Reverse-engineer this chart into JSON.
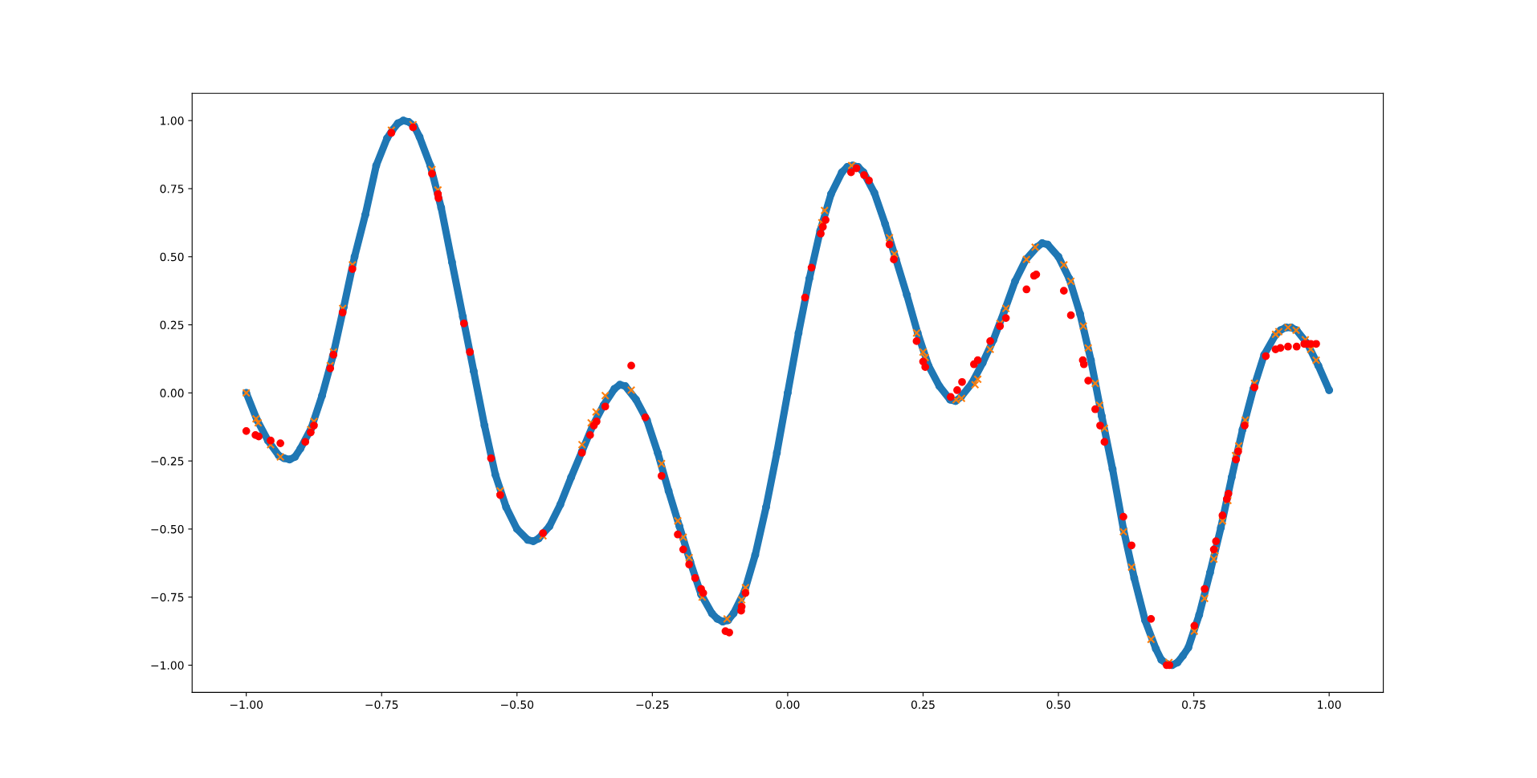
{
  "chart_data": {
    "type": "scatter",
    "xlim": [
      -1.1,
      1.1
    ],
    "ylim": [
      -1.1,
      1.1
    ],
    "xticks": [
      {
        "value": -1.0,
        "label": "−1.00"
      },
      {
        "value": -0.75,
        "label": "−0.75"
      },
      {
        "value": -0.5,
        "label": "−0.50"
      },
      {
        "value": -0.25,
        "label": "−0.25"
      },
      {
        "value": 0.0,
        "label": "0.00"
      },
      {
        "value": 0.25,
        "label": "0.25"
      },
      {
        "value": 0.5,
        "label": "0.50"
      },
      {
        "value": 0.75,
        "label": "0.75"
      },
      {
        "value": 1.0,
        "label": "1.00"
      }
    ],
    "yticks": [
      {
        "value": -1.0,
        "label": "−1.00"
      },
      {
        "value": -0.75,
        "label": "−0.75"
      },
      {
        "value": -0.5,
        "label": "−0.50"
      },
      {
        "value": -0.25,
        "label": "−0.25"
      },
      {
        "value": 0.0,
        "label": "0.00"
      },
      {
        "value": 0.25,
        "label": "0.25"
      },
      {
        "value": 0.5,
        "label": "0.50"
      },
      {
        "value": 0.75,
        "label": "0.75"
      },
      {
        "value": 1.0,
        "label": "1.00"
      }
    ],
    "series": [
      {
        "type": "line",
        "marker": "circle",
        "line_style": "solid",
        "color": "#1f77b4",
        "x": [
          -1.0,
          -0.98,
          -0.96,
          -0.94,
          -0.93,
          -0.92,
          -0.91,
          -0.9,
          -0.88,
          -0.86,
          -0.84,
          -0.82,
          -0.8,
          -0.78,
          -0.76,
          -0.74,
          -0.73,
          -0.72,
          -0.71,
          -0.7,
          -0.69,
          -0.68,
          -0.66,
          -0.64,
          -0.62,
          -0.6,
          -0.58,
          -0.56,
          -0.54,
          -0.52,
          -0.5,
          -0.48,
          -0.47,
          -0.46,
          -0.44,
          -0.42,
          -0.4,
          -0.38,
          -0.36,
          -0.34,
          -0.32,
          -0.31,
          -0.3,
          -0.28,
          -0.26,
          -0.24,
          -0.22,
          -0.2,
          -0.18,
          -0.16,
          -0.14,
          -0.13,
          -0.12,
          -0.11,
          -0.1,
          -0.08,
          -0.06,
          -0.04,
          -0.02,
          0.0,
          0.02,
          0.04,
          0.06,
          0.08,
          0.1,
          0.11,
          0.12,
          0.13,
          0.14,
          0.16,
          0.18,
          0.2,
          0.22,
          0.24,
          0.26,
          0.28,
          0.3,
          0.31,
          0.32,
          0.34,
          0.36,
          0.38,
          0.4,
          0.42,
          0.44,
          0.46,
          0.47,
          0.48,
          0.5,
          0.52,
          0.54,
          0.56,
          0.58,
          0.6,
          0.62,
          0.64,
          0.66,
          0.68,
          0.69,
          0.7,
          0.71,
          0.72,
          0.73,
          0.74,
          0.76,
          0.78,
          0.8,
          0.82,
          0.84,
          0.86,
          0.88,
          0.9,
          0.91,
          0.92,
          0.93,
          0.94,
          0.96,
          0.98,
          1.0
        ],
        "values": [
          0.0,
          -0.1,
          -0.175,
          -0.23,
          -0.24,
          -0.245,
          -0.235,
          -0.205,
          -0.13,
          -0.01,
          0.135,
          0.315,
          0.5,
          0.655,
          0.835,
          0.935,
          0.965,
          0.99,
          1.0,
          0.995,
          0.98,
          0.94,
          0.835,
          0.68,
          0.48,
          0.28,
          0.08,
          -0.12,
          -0.3,
          -0.42,
          -0.5,
          -0.54,
          -0.545,
          -0.535,
          -0.49,
          -0.41,
          -0.31,
          -0.215,
          -0.12,
          -0.045,
          0.015,
          0.03,
          0.025,
          -0.025,
          -0.1,
          -0.22,
          -0.36,
          -0.49,
          -0.62,
          -0.74,
          -0.81,
          -0.83,
          -0.84,
          -0.835,
          -0.81,
          -0.73,
          -0.595,
          -0.42,
          -0.22,
          0.0,
          0.22,
          0.42,
          0.595,
          0.73,
          0.81,
          0.83,
          0.835,
          0.83,
          0.81,
          0.735,
          0.62,
          0.49,
          0.36,
          0.22,
          0.1,
          0.025,
          -0.025,
          -0.03,
          -0.015,
          0.035,
          0.11,
          0.195,
          0.3,
          0.41,
          0.49,
          0.535,
          0.55,
          0.545,
          0.5,
          0.42,
          0.29,
          0.12,
          -0.085,
          -0.28,
          -0.5,
          -0.68,
          -0.835,
          -0.94,
          -0.98,
          -0.995,
          -1.0,
          -0.99,
          -0.965,
          -0.935,
          -0.815,
          -0.66,
          -0.495,
          -0.31,
          -0.135,
          0.015,
          0.14,
          0.21,
          0.23,
          0.24,
          0.24,
          0.23,
          0.18,
          0.1,
          0.01
        ]
      },
      {
        "marker": "cross",
        "color": "#ff7f0e",
        "x": [
          -1.0,
          -0.982,
          -0.978,
          -0.955,
          -0.937,
          -0.881,
          -0.875,
          -0.845,
          -0.839,
          -0.822,
          -0.804,
          -0.732,
          -0.692,
          -0.657,
          -0.646,
          -0.531,
          -0.452,
          -0.38,
          -0.363,
          -0.354,
          -0.337,
          -0.289,
          -0.233,
          -0.203,
          -0.193,
          -0.182,
          -0.158,
          -0.112,
          -0.085,
          -0.078,
          0.063,
          0.068,
          0.118,
          0.188,
          0.197,
          0.238,
          0.25,
          0.254,
          0.311,
          0.321,
          0.346,
          0.351,
          0.374,
          0.392,
          0.403,
          0.441,
          0.457,
          0.51,
          0.523,
          0.546,
          0.555,
          0.568,
          0.576,
          0.585,
          0.62,
          0.635,
          0.671,
          0.704,
          0.751,
          0.77,
          0.787,
          0.789,
          0.803,
          0.813,
          0.827,
          0.833,
          0.845,
          0.862,
          0.901,
          0.907,
          0.924,
          0.939,
          0.956,
          0.966,
          0.976
        ],
        "values": [
          0.0,
          -0.095,
          -0.11,
          -0.19,
          -0.235,
          -0.135,
          -0.105,
          0.1,
          0.15,
          0.31,
          0.47,
          0.965,
          0.985,
          0.82,
          0.745,
          -0.36,
          -0.525,
          -0.19,
          -0.11,
          -0.07,
          -0.01,
          0.01,
          -0.26,
          -0.47,
          -0.53,
          -0.605,
          -0.75,
          -0.83,
          -0.76,
          -0.715,
          0.625,
          0.67,
          0.835,
          0.57,
          0.51,
          0.22,
          0.15,
          0.13,
          -0.025,
          -0.02,
          0.03,
          0.05,
          0.16,
          0.255,
          0.31,
          0.49,
          0.535,
          0.47,
          0.41,
          0.245,
          0.165,
          0.035,
          -0.045,
          -0.13,
          -0.51,
          -0.64,
          -0.905,
          -0.99,
          -0.875,
          -0.755,
          -0.61,
          -0.58,
          -0.47,
          -0.395,
          -0.23,
          -0.195,
          -0.1,
          0.035,
          0.215,
          0.225,
          0.24,
          0.23,
          0.195,
          0.16,
          0.12
        ]
      },
      {
        "marker": "circle",
        "color": "#ff0000",
        "x": [
          -1.0,
          -0.983,
          -0.977,
          -0.955,
          -0.937,
          -0.891,
          -0.881,
          -0.875,
          -0.845,
          -0.839,
          -0.822,
          -0.804,
          -0.732,
          -0.692,
          -0.657,
          -0.646,
          -0.645,
          -0.598,
          -0.587,
          -0.548,
          -0.531,
          -0.452,
          -0.38,
          -0.365,
          -0.358,
          -0.353,
          -0.337,
          -0.289,
          -0.263,
          -0.233,
          -0.203,
          -0.193,
          -0.182,
          -0.171,
          -0.16,
          -0.156,
          -0.115,
          -0.108,
          -0.086,
          -0.085,
          -0.078,
          0.032,
          0.044,
          0.061,
          0.065,
          0.07,
          0.117,
          0.127,
          0.141,
          0.15,
          0.188,
          0.196,
          0.238,
          0.25,
          0.254,
          0.301,
          0.313,
          0.322,
          0.344,
          0.351,
          0.374,
          0.392,
          0.403,
          0.441,
          0.455,
          0.459,
          0.51,
          0.523,
          0.545,
          0.547,
          0.555,
          0.568,
          0.577,
          0.585,
          0.62,
          0.635,
          0.671,
          0.7,
          0.705,
          0.751,
          0.77,
          0.787,
          0.791,
          0.803,
          0.811,
          0.814,
          0.828,
          0.832,
          0.844,
          0.862,
          0.883,
          0.901,
          0.91,
          0.924,
          0.94,
          0.954,
          0.96,
          0.966,
          0.976
        ],
        "values": [
          -0.14,
          -0.155,
          -0.16,
          -0.175,
          -0.185,
          -0.18,
          -0.145,
          -0.12,
          0.09,
          0.14,
          0.295,
          0.455,
          0.955,
          0.975,
          0.805,
          0.73,
          0.715,
          0.255,
          0.15,
          -0.24,
          -0.375,
          -0.515,
          -0.22,
          -0.155,
          -0.12,
          -0.105,
          -0.05,
          0.1,
          -0.09,
          -0.305,
          -0.52,
          -0.575,
          -0.63,
          -0.68,
          -0.72,
          -0.735,
          -0.875,
          -0.88,
          -0.8,
          -0.785,
          -0.735,
          0.35,
          0.46,
          0.585,
          0.61,
          0.635,
          0.81,
          0.825,
          0.8,
          0.78,
          0.545,
          0.49,
          0.19,
          0.115,
          0.095,
          -0.015,
          0.01,
          0.04,
          0.105,
          0.12,
          0.19,
          0.245,
          0.275,
          0.38,
          0.43,
          0.435,
          0.375,
          0.285,
          0.12,
          0.105,
          0.045,
          -0.06,
          -0.12,
          -0.18,
          -0.455,
          -0.56,
          -0.83,
          -1.0,
          -1.0,
          -0.855,
          -0.72,
          -0.575,
          -0.545,
          -0.45,
          -0.39,
          -0.37,
          -0.245,
          -0.215,
          -0.12,
          0.02,
          0.135,
          0.16,
          0.165,
          0.17,
          0.17,
          0.18,
          0.18,
          0.18,
          0.18
        ]
      }
    ]
  }
}
